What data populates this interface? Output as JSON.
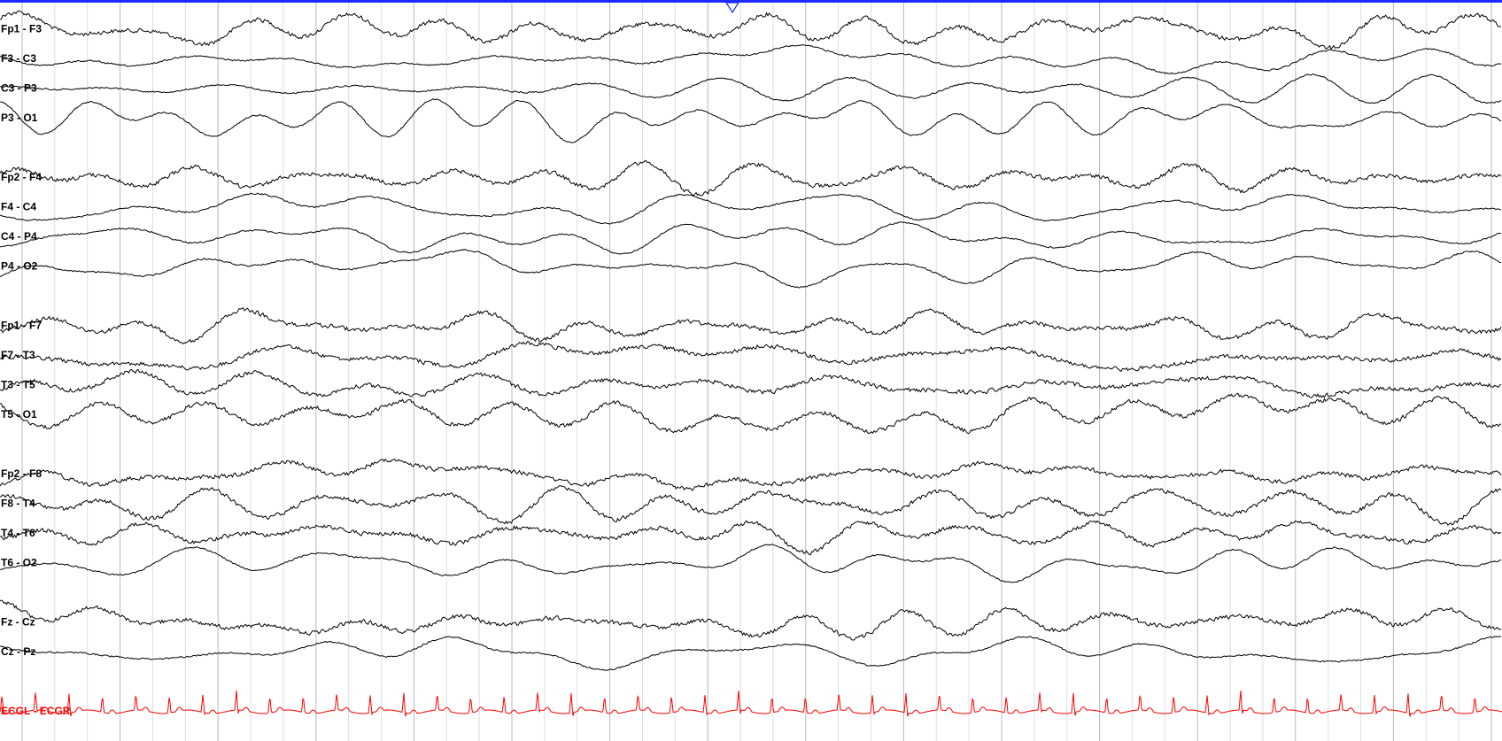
{
  "channels": [
    "Fp1 - F3",
    "F3 - C3",
    "C3 - P3",
    "P3 - O1",
    "Fp2 - F4",
    "F4 - C4",
    "C4 - P4",
    "P4 - O2",
    "Fp1 - F7",
    "F7 - T3",
    "T3 - T5",
    "T5 - O1",
    "Fp2 - F8",
    "F8 - T4",
    "T4 - T6",
    "T6 - O2",
    "Fz - Cz",
    "Cz - Pz",
    "ECGL - ECGR"
  ]
}
